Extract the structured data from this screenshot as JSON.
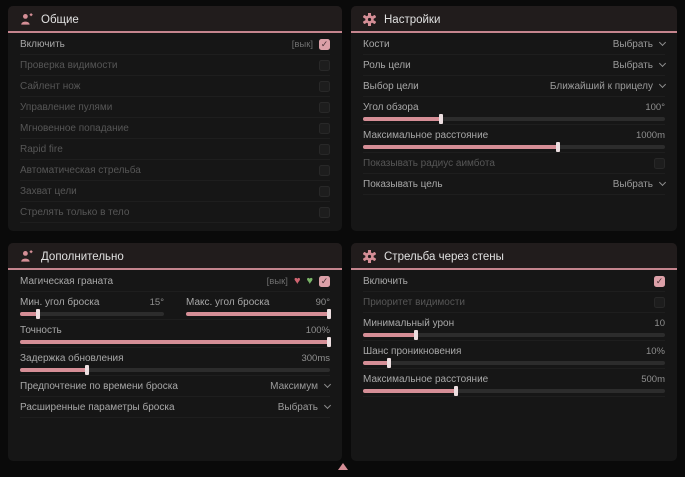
{
  "colors": {
    "accent": "#d58e96",
    "header_line": "#c5858e",
    "checkbox_checked": "#dca0a8",
    "pink_badge": "#cf6470",
    "green_badge": "#79b467"
  },
  "icons": {
    "general": "person-crosshair-icon",
    "settings": "gear-icon",
    "additional": "person-crosshair-icon",
    "wallbang": "gear-icon",
    "bottom": "arrow-up-icon"
  },
  "panels": [
    {
      "id": "general",
      "title": "Общие",
      "icon": "person-crosshair-icon",
      "rows": [
        {
          "type": "checkbox",
          "label": "Включить",
          "prefix": "[вык]",
          "checked": true,
          "enabled": true
        },
        {
          "type": "checkbox",
          "label": "Проверка видимости",
          "checked": false,
          "enabled": false
        },
        {
          "type": "checkbox",
          "label": "Сайлент нож",
          "checked": false,
          "enabled": false
        },
        {
          "type": "checkbox",
          "label": "Управление пулями",
          "checked": false,
          "enabled": false
        },
        {
          "type": "checkbox",
          "label": "Мгновенное попадание",
          "checked": false,
          "enabled": false
        },
        {
          "type": "checkbox",
          "label": "Rapid fire",
          "checked": false,
          "enabled": false
        },
        {
          "type": "checkbox",
          "label": "Автоматическая стрельба",
          "checked": false,
          "enabled": false
        },
        {
          "type": "checkbox",
          "label": "Захват цели",
          "checked": false,
          "enabled": false
        },
        {
          "type": "checkbox",
          "label": "Стрелять только в тело",
          "checked": false,
          "enabled": false
        }
      ]
    },
    {
      "id": "settings",
      "title": "Настройки",
      "icon": "gear-icon",
      "rows": [
        {
          "type": "dropdown",
          "label": "Кости",
          "value": "Выбрать",
          "enabled": true
        },
        {
          "type": "dropdown",
          "label": "Роль цели",
          "value": "Выбрать",
          "enabled": true
        },
        {
          "type": "dropdown",
          "label": "Выбор цели",
          "value": "Ближайший к прицелу",
          "enabled": true
        },
        {
          "type": "slider",
          "label": "Угол обзора",
          "value": "100°",
          "fill": 26,
          "enabled": true
        },
        {
          "type": "slider",
          "label": "Максимальное расстояние",
          "value": "1000m",
          "fill": 65,
          "enabled": true
        },
        {
          "type": "checkbox",
          "label": "Показывать радиус аимбота",
          "checked": false,
          "enabled": false
        },
        {
          "type": "dropdown",
          "label": "Показывать цель",
          "value": "Выбрать",
          "enabled": true
        }
      ]
    },
    {
      "id": "additional",
      "title": "Дополнительно",
      "icon": "person-crosshair-icon",
      "rows": [
        {
          "type": "checkbox",
          "label": "Магическая граната",
          "prefix": "[вык]",
          "checked": true,
          "enabled": true,
          "badges": [
            {
              "name": "pink-heart-icon",
              "glyph": "♥",
              "color": "#cf6470"
            },
            {
              "name": "green-heart-icon",
              "glyph": "♥",
              "color": "#79b467"
            }
          ]
        },
        {
          "type": "slider-pair",
          "left": {
            "label": "Мин. угол броска",
            "value": "15°",
            "fill": 13
          },
          "right": {
            "label": "Макс. угол броска",
            "value": "90°",
            "fill": 100
          },
          "enabled": true
        },
        {
          "type": "slider",
          "label": "Точность",
          "value": "100%",
          "fill": 100,
          "enabled": true
        },
        {
          "type": "slider",
          "label": "Задержка обновления",
          "value": "300ms",
          "fill": 22,
          "enabled": true
        },
        {
          "type": "dropdown",
          "label": "Предпочтение по времени броска",
          "value": "Максимум",
          "enabled": true
        },
        {
          "type": "dropdown",
          "label": "Расширенные параметры броска",
          "value": "Выбрать",
          "enabled": true
        }
      ]
    },
    {
      "id": "wallbang",
      "title": "Стрельба через стены",
      "icon": "gear-icon",
      "rows": [
        {
          "type": "checkbox",
          "label": "Включить",
          "checked": true,
          "enabled": true
        },
        {
          "type": "checkbox",
          "label": "Приоритет видимости",
          "checked": false,
          "enabled": false
        },
        {
          "type": "slider",
          "label": "Минимальный урон",
          "value": "10",
          "fill": 18,
          "enabled": true
        },
        {
          "type": "slider",
          "label": "Шанс проникновения",
          "value": "10%",
          "fill": 9,
          "enabled": true
        },
        {
          "type": "slider",
          "label": "Максимальное расстояние",
          "value": "500m",
          "fill": 31,
          "enabled": true
        }
      ]
    }
  ]
}
